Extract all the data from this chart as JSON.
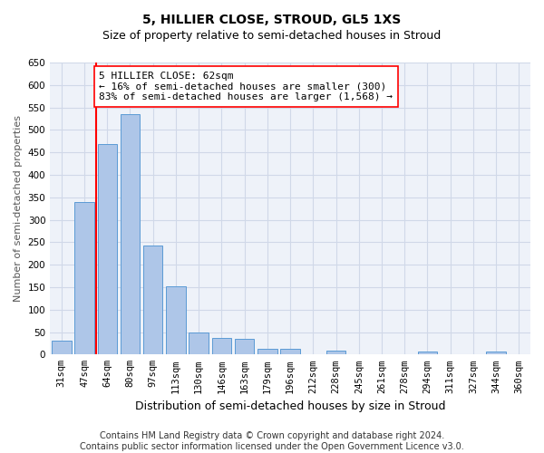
{
  "title": "5, HILLIER CLOSE, STROUD, GL5 1XS",
  "subtitle": "Size of property relative to semi-detached houses in Stroud",
  "xlabel": "Distribution of semi-detached houses by size in Stroud",
  "ylabel": "Number of semi-detached properties",
  "categories": [
    "31sqm",
    "47sqm",
    "64sqm",
    "80sqm",
    "97sqm",
    "113sqm",
    "130sqm",
    "146sqm",
    "163sqm",
    "179sqm",
    "196sqm",
    "212sqm",
    "228sqm",
    "245sqm",
    "261sqm",
    "278sqm",
    "294sqm",
    "311sqm",
    "327sqm",
    "344sqm",
    "360sqm"
  ],
  "values": [
    30,
    340,
    468,
    535,
    243,
    151,
    50,
    37,
    35,
    13,
    13,
    0,
    8,
    0,
    0,
    0,
    6,
    0,
    0,
    6,
    0
  ],
  "bar_color": "#aec6e8",
  "bar_edge_color": "#5b9bd5",
  "grid_color": "#d0d8e8",
  "vline_color": "red",
  "vline_x": 1.5,
  "annotation_line1": "5 HILLIER CLOSE: 62sqm",
  "annotation_line2": "← 16% of semi-detached houses are smaller (300)",
  "annotation_line3": "83% of semi-detached houses are larger (1,568) →",
  "annotation_box_color": "white",
  "annotation_box_edge": "red",
  "ylim": [
    0,
    650
  ],
  "yticks": [
    0,
    50,
    100,
    150,
    200,
    250,
    300,
    350,
    400,
    450,
    500,
    550,
    600,
    650
  ],
  "footer_line1": "Contains HM Land Registry data © Crown copyright and database right 2024.",
  "footer_line2": "Contains public sector information licensed under the Open Government Licence v3.0.",
  "bg_color": "#eef2f9",
  "title_fontsize": 10,
  "ylabel_fontsize": 8,
  "xlabel_fontsize": 9,
  "annotation_fontsize": 8,
  "tick_fontsize": 7.5,
  "footer_fontsize": 7
}
